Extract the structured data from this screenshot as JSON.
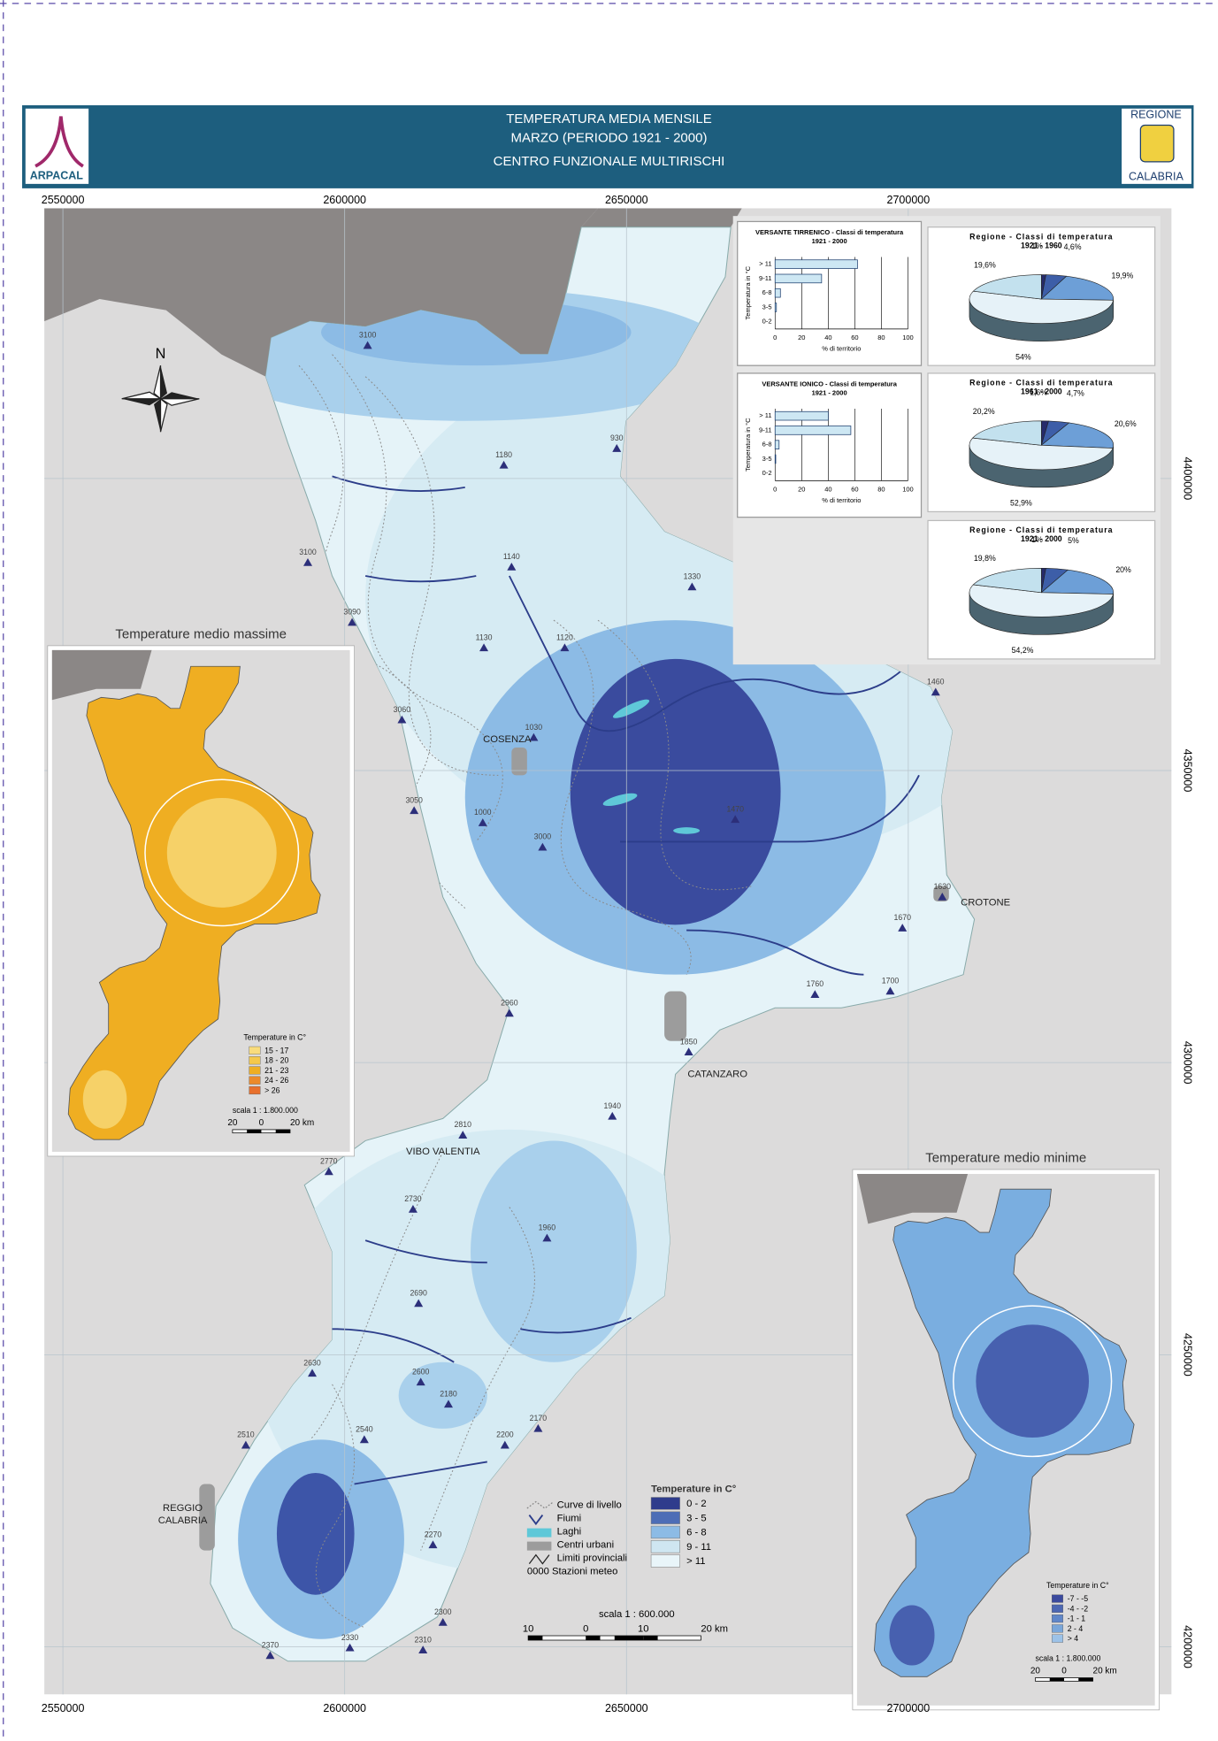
{
  "header": {
    "title": "TEMPERATURA MEDIA MENSILE",
    "subtitle": "MARZO (PERIODO 1921 - 2000)",
    "organization": "CENTRO FUNZIONALE MULTIRISCHI",
    "logo_left": "ARPACAL",
    "logo_right": [
      "REGIONE",
      "CALABRIA"
    ]
  },
  "map": {
    "xlim": [
      2546700,
      2746700
    ],
    "ylim": [
      4191850,
      4446250
    ],
    "xticks": [
      2550000,
      2600000,
      2650000,
      2700000
    ],
    "yticks": [
      4400000,
      4350000,
      4300000,
      4250000,
      4200000
    ],
    "north": "N",
    "cities": [
      "COSENZA",
      "CROTONE",
      "CATANZARO",
      "VIBO VALENTIA",
      "REGGIO",
      "CALABRIA"
    ],
    "stations": [
      "3100",
      "930",
      "1180",
      "3100",
      "1140",
      "1330",
      "3090",
      "1120",
      "1130",
      "1460",
      "3060",
      "1030",
      "3050",
      "1000",
      "3000",
      "1470",
      "1630",
      "1670",
      "1760",
      "1700",
      "2960",
      "1850",
      "2810",
      "2770",
      "2730",
      "1960",
      "2690",
      "2630",
      "2600",
      "2180",
      "2510",
      "2540",
      "2200",
      "2170",
      "2270",
      "2330",
      "2370",
      "2310",
      "2300",
      "1940"
    ]
  },
  "legend": {
    "title": "Temperature in C°",
    "classes": [
      "0 - 2",
      "3 - 5",
      "6 - 8",
      "9 - 11",
      "> 11"
    ],
    "colors": [
      "#2f3c8c",
      "#4d6db6",
      "#8cbbe5",
      "#cfe6f1",
      "#e9f5f9"
    ],
    "symbols": [
      "Curve di livello",
      "Fiumi",
      "Laghi",
      "Centri urbani",
      "Limiti provinciali",
      "0000 Stazioni meteo"
    ],
    "scale": "scala 1 : 600.000",
    "scale_ticks": [
      "10",
      "0",
      "10",
      "20 km"
    ]
  },
  "insets": [
    {
      "title": "Temperature medio massime",
      "legend_title": "Temperature in C°",
      "classes": [
        "15 - 17",
        "18 - 20",
        "21 - 23",
        "24 - 26",
        "> 26"
      ],
      "colors": [
        "#f9dc7c",
        "#f5c84a",
        "#efae22",
        "#ec8a2a",
        "#e8702c"
      ],
      "scale": "scala 1 : 1.800.000",
      "scale_ticks": [
        "20",
        "0",
        "20 km"
      ]
    },
    {
      "title": "Temperature medio minime",
      "legend_title": "Temperature in C°",
      "classes": [
        "-7 - -5",
        "-4 - -2",
        "-1 - 1",
        "2 - 4",
        "> 4"
      ],
      "colors": [
        "#3b4a9e",
        "#4c67b3",
        "#5f86c9",
        "#79a6da",
        "#9cc2e8"
      ],
      "scale": "scala 1 : 1.800.000",
      "scale_ticks": [
        "20",
        "0",
        "20 km"
      ]
    }
  ],
  "chart_data": [
    {
      "type": "bar",
      "title": "VERSANTE TIRRENICO - Classi di temperatura",
      "subtitle": "1921 - 2000",
      "categories": [
        "> 11",
        "9-11",
        "6-8",
        "3-5",
        "0-2"
      ],
      "values": [
        62,
        35,
        4,
        1,
        0
      ],
      "color": "#cde7f3",
      "xlim": [
        0,
        100
      ],
      "xticks": [
        0,
        20,
        40,
        60,
        80,
        100
      ],
      "xlabel": "% di territorio",
      "ylabel": "Temperatura in °C"
    },
    {
      "type": "bar",
      "title": "VERSANTE IONICO - Classi di temperatura",
      "subtitle": "1921 - 2000",
      "categories": [
        "> 11",
        "9-11",
        "6-8",
        "3-5",
        "0-2"
      ],
      "values": [
        40,
        57,
        3,
        0.5,
        0
      ],
      "color": "#cde7f3",
      "xlim": [
        0,
        100
      ],
      "xticks": [
        0,
        20,
        40,
        60,
        80,
        100
      ],
      "xlabel": "% di territorio",
      "ylabel": "Temperatura in °C"
    },
    {
      "type": "pie",
      "title": "Regione - Classi di temperatura",
      "subtitle": "1921 - 1960",
      "values": [
        1,
        4.6,
        19.9,
        54,
        19.6
      ],
      "value_labels": [
        "1%",
        "4,6%",
        "19,9%",
        "54%",
        "19,6%"
      ],
      "colors": [
        "#262b6b",
        "#3d5ea8",
        "#6d9fd7",
        "#e6f2f8",
        "#c3e1ee"
      ]
    },
    {
      "type": "pie",
      "title": "Regione - Classi di temperatura",
      "subtitle": "1961 - 2000",
      "values": [
        1.6,
        4.7,
        20.6,
        52.9,
        20.2
      ],
      "value_labels": [
        "1,6%",
        "4,7%",
        "20,6%",
        "52,9%",
        "20,2%"
      ],
      "colors": [
        "#262b6b",
        "#3d5ea8",
        "#6d9fd7",
        "#e6f2f8",
        "#c3e1ee"
      ]
    },
    {
      "type": "pie",
      "title": "Regione - Classi di temperatura",
      "subtitle": "1921 - 2000",
      "values": [
        1,
        5,
        20,
        54.2,
        19.8
      ],
      "value_labels": [
        "1%",
        "5%",
        "20%",
        "54,2%",
        "19,8%"
      ],
      "colors": [
        "#262b6b",
        "#3d5ea8",
        "#6d9fd7",
        "#e6f2f8",
        "#c3e1ee"
      ]
    }
  ]
}
